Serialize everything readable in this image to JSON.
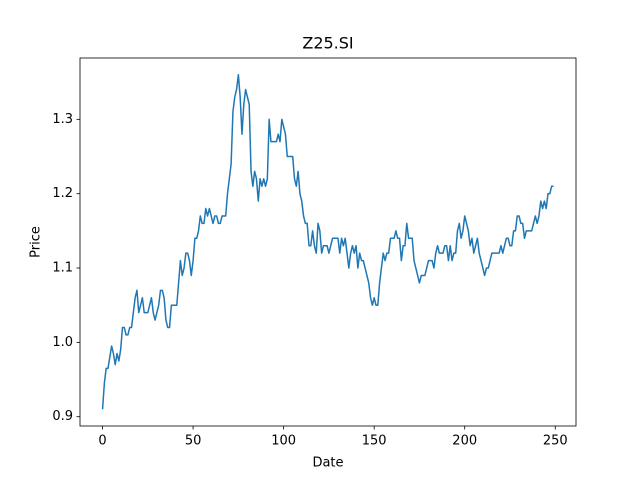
{
  "chart_data": {
    "type": "line",
    "title": "Z25.SI",
    "x_label": "Date",
    "y_label": "Price",
    "color": "#1f77b4",
    "x": [
      0,
      1,
      2,
      3,
      4,
      5,
      6,
      7,
      8,
      9,
      10,
      11,
      12,
      13,
      14,
      15,
      16,
      17,
      18,
      19,
      20,
      21,
      22,
      23,
      24,
      25,
      26,
      27,
      28,
      29,
      30,
      31,
      32,
      33,
      34,
      35,
      36,
      37,
      38,
      39,
      40,
      41,
      42,
      43,
      44,
      45,
      46,
      47,
      48,
      49,
      50,
      51,
      52,
      53,
      54,
      55,
      56,
      57,
      58,
      59,
      60,
      61,
      62,
      63,
      64,
      65,
      66,
      67,
      68,
      69,
      70,
      71,
      72,
      73,
      74,
      75,
      76,
      77,
      78,
      79,
      80,
      81,
      82,
      83,
      84,
      85,
      86,
      87,
      88,
      89,
      90,
      91,
      92,
      93,
      94,
      95,
      96,
      97,
      98,
      99,
      100,
      101,
      102,
      103,
      104,
      105,
      106,
      107,
      108,
      109,
      110,
      111,
      112,
      113,
      114,
      115,
      116,
      117,
      118,
      119,
      120,
      121,
      122,
      123,
      124,
      125,
      126,
      127,
      128,
      129,
      130,
      131,
      132,
      133,
      134,
      135,
      136,
      137,
      138,
      139,
      140,
      141,
      142,
      143,
      144,
      145,
      146,
      147,
      148,
      149,
      150,
      151,
      152,
      153,
      154,
      155,
      156,
      157,
      158,
      159,
      160,
      161,
      162,
      163,
      164,
      165,
      166,
      167,
      168,
      169,
      170,
      171,
      172,
      173,
      174,
      175,
      176,
      177,
      178,
      179,
      180,
      181,
      182,
      183,
      184,
      185,
      186,
      187,
      188,
      189,
      190,
      191,
      192,
      193,
      194,
      195,
      196,
      197,
      198,
      199,
      200,
      201,
      202,
      203,
      204,
      205,
      206,
      207,
      208,
      209,
      210,
      211,
      212,
      213,
      214,
      215,
      216,
      217,
      218,
      219,
      220,
      221,
      222,
      223,
      224,
      225,
      226,
      227,
      228,
      229,
      230,
      231,
      232,
      233,
      234,
      235,
      236,
      237,
      238,
      239,
      240,
      241,
      242,
      243,
      244,
      245,
      246,
      247,
      248,
      249
    ],
    "values": [
      0.91,
      0.945,
      0.965,
      0.965,
      0.98,
      0.995,
      0.985,
      0.97,
      0.985,
      0.975,
      0.99,
      1.02,
      1.02,
      1.01,
      1.01,
      1.02,
      1.02,
      1.04,
      1.06,
      1.07,
      1.04,
      1.05,
      1.06,
      1.04,
      1.04,
      1.04,
      1.05,
      1.06,
      1.04,
      1.03,
      1.04,
      1.05,
      1.07,
      1.07,
      1.06,
      1.03,
      1.02,
      1.02,
      1.05,
      1.05,
      1.05,
      1.05,
      1.08,
      1.11,
      1.09,
      1.1,
      1.12,
      1.12,
      1.11,
      1.09,
      1.11,
      1.14,
      1.14,
      1.15,
      1.17,
      1.16,
      1.16,
      1.18,
      1.17,
      1.18,
      1.17,
      1.16,
      1.17,
      1.17,
      1.16,
      1.16,
      1.17,
      1.17,
      1.17,
      1.2,
      1.22,
      1.24,
      1.31,
      1.33,
      1.34,
      1.36,
      1.33,
      1.28,
      1.32,
      1.34,
      1.33,
      1.32,
      1.23,
      1.21,
      1.23,
      1.22,
      1.19,
      1.22,
      1.21,
      1.22,
      1.21,
      1.22,
      1.3,
      1.27,
      1.27,
      1.27,
      1.27,
      1.28,
      1.27,
      1.3,
      1.29,
      1.28,
      1.25,
      1.25,
      1.25,
      1.25,
      1.22,
      1.21,
      1.23,
      1.2,
      1.19,
      1.17,
      1.16,
      1.16,
      1.13,
      1.13,
      1.15,
      1.13,
      1.12,
      1.16,
      1.15,
      1.12,
      1.13,
      1.13,
      1.13,
      1.12,
      1.13,
      1.14,
      1.14,
      1.14,
      1.14,
      1.12,
      1.14,
      1.13,
      1.14,
      1.12,
      1.1,
      1.12,
      1.13,
      1.12,
      1.13,
      1.1,
      1.12,
      1.11,
      1.11,
      1.1,
      1.09,
      1.08,
      1.06,
      1.05,
      1.06,
      1.05,
      1.05,
      1.08,
      1.1,
      1.12,
      1.11,
      1.12,
      1.12,
      1.14,
      1.14,
      1.14,
      1.15,
      1.14,
      1.14,
      1.11,
      1.13,
      1.13,
      1.16,
      1.14,
      1.14,
      1.14,
      1.11,
      1.1,
      1.09,
      1.08,
      1.09,
      1.09,
      1.09,
      1.1,
      1.11,
      1.11,
      1.11,
      1.1,
      1.12,
      1.13,
      1.12,
      1.12,
      1.12,
      1.13,
      1.13,
      1.11,
      1.13,
      1.11,
      1.12,
      1.12,
      1.15,
      1.16,
      1.14,
      1.15,
      1.17,
      1.16,
      1.15,
      1.13,
      1.14,
      1.12,
      1.13,
      1.14,
      1.12,
      1.11,
      1.1,
      1.09,
      1.1,
      1.1,
      1.11,
      1.12,
      1.12,
      1.12,
      1.12,
      1.12,
      1.13,
      1.12,
      1.13,
      1.14,
      1.14,
      1.13,
      1.13,
      1.15,
      1.15,
      1.17,
      1.17,
      1.16,
      1.16,
      1.14,
      1.15,
      1.15,
      1.15,
      1.15,
      1.16,
      1.17,
      1.16,
      1.17,
      1.19,
      1.18,
      1.19,
      1.18,
      1.2,
      1.2,
      1.21,
      1.21
    ],
    "xlim": [
      -12.45,
      261.45
    ],
    "xticks": [
      0,
      50,
      100,
      150,
      200,
      250
    ],
    "ylim": [
      0.8875,
      1.3825
    ],
    "yticks": [
      0.9,
      {
        "value": 1,
        "label": "1.0"
      },
      1.1,
      1.2,
      1.3
    ]
  }
}
